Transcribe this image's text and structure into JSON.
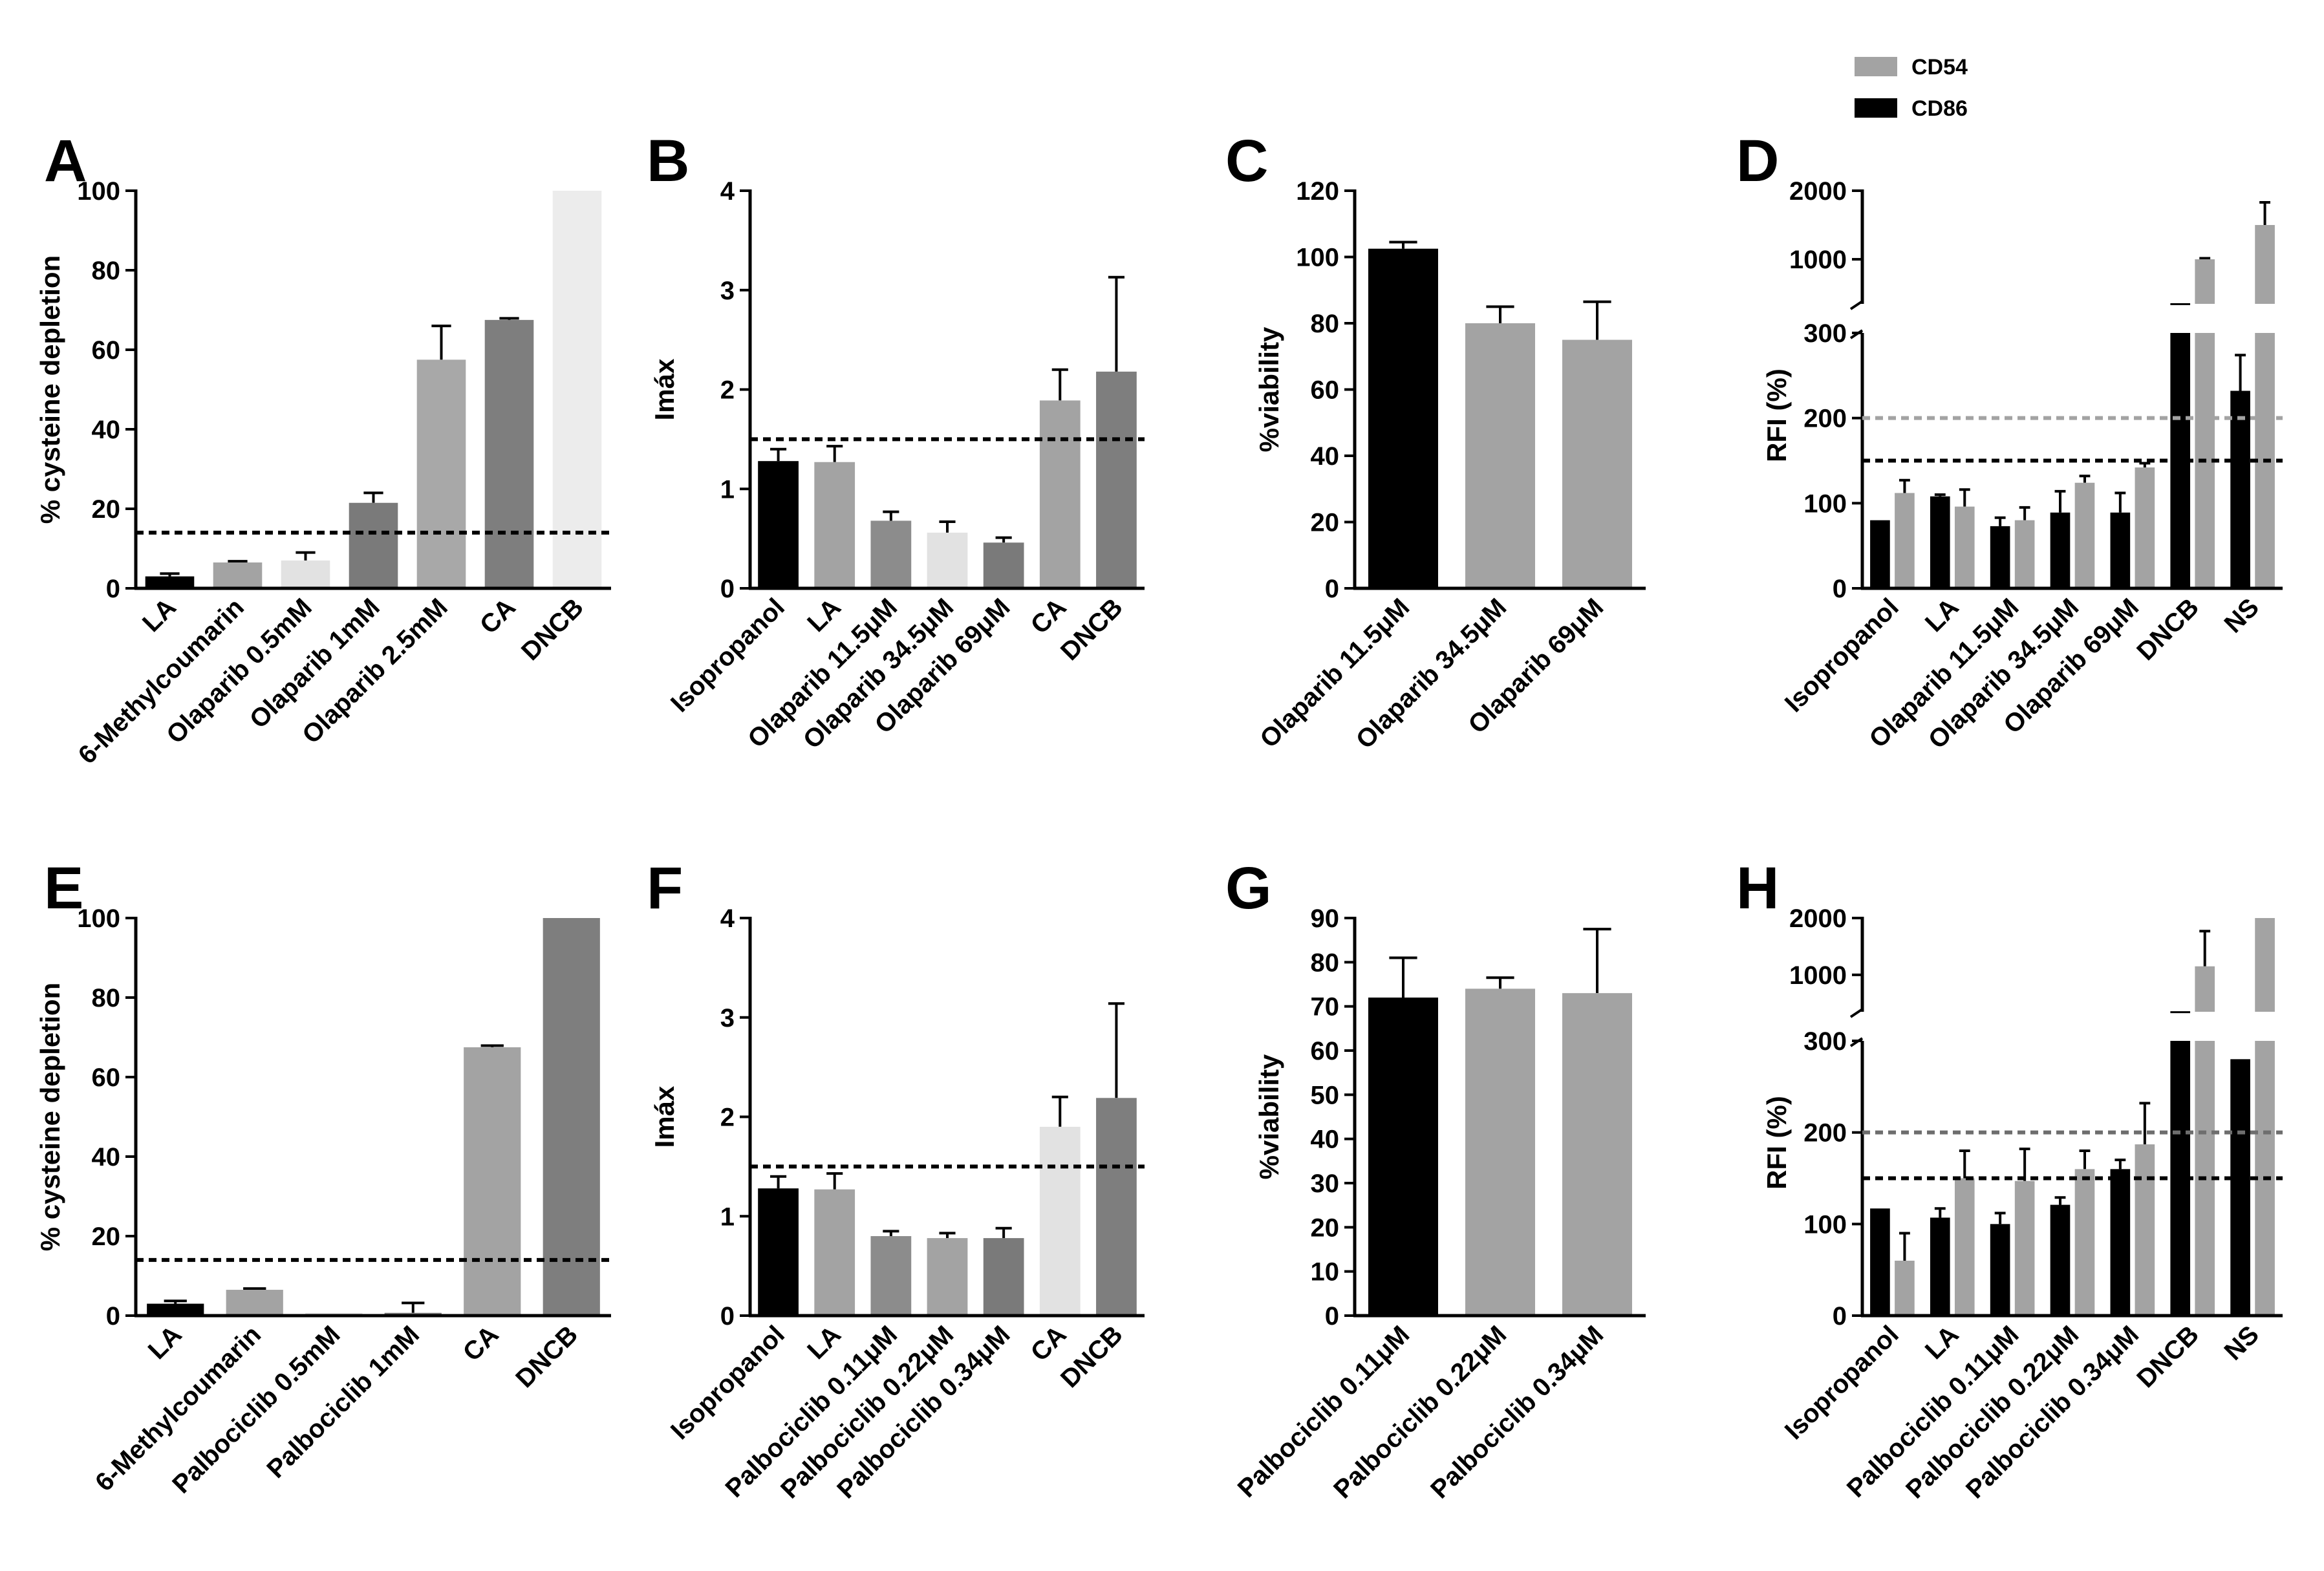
{
  "legend": {
    "items": [
      {
        "label": "CD54",
        "color": "#a3a3a3"
      },
      {
        "label": "CD86",
        "color": "#000000"
      }
    ]
  },
  "chart_data": [
    {
      "id": "A",
      "letter": "A",
      "type": "bar",
      "ylabel": "% cysteine depletion",
      "ylim": [
        0,
        100
      ],
      "yticks": [
        0,
        20,
        40,
        60,
        80,
        100
      ],
      "categories": [
        "LA",
        "6-Methylcoumarin",
        "Olaparib 0.5mM",
        "Olaparib 1mM",
        "Olaparib 2.5mM",
        "CA",
        "DNCB"
      ],
      "values": [
        3,
        6.5,
        7,
        21.5,
        57.5,
        67.5,
        100
      ],
      "errors": [
        0.7,
        0.3,
        2,
        2.5,
        8.5,
        0.4,
        0
      ],
      "colors": [
        "#000000",
        "#a3a3a3",
        "#e2e2e2",
        "#7a7a7a",
        "#a8a8a8",
        "#7e7e7e",
        "#ececec"
      ],
      "threshold": 14
    },
    {
      "id": "B",
      "letter": "B",
      "type": "bar",
      "ylabel": "Imáx",
      "ylim": [
        0,
        4
      ],
      "yticks": [
        0,
        1,
        2,
        3,
        4
      ],
      "categories": [
        "Isopropanol",
        "LA",
        "Olaparib 11.5μM",
        "Olaparib 34.5μM",
        "Olaparib 69μM",
        "CA",
        "DNCB"
      ],
      "values": [
        1.28,
        1.27,
        0.68,
        0.56,
        0.46,
        1.89,
        2.18
      ],
      "errors": [
        0.12,
        0.16,
        0.09,
        0.11,
        0.05,
        0.31,
        0.95
      ],
      "colors": [
        "#000000",
        "#a3a3a3",
        "#8c8c8c",
        "#e2e2e2",
        "#7a7a7a",
        "#a3a3a3",
        "#7e7e7e"
      ],
      "threshold": 1.5
    },
    {
      "id": "C",
      "letter": "C",
      "type": "bar",
      "ylabel": "%viability",
      "ylim": [
        0,
        120
      ],
      "yticks": [
        0,
        20,
        40,
        60,
        80,
        100,
        120
      ],
      "categories": [
        "Olaparib 11.5μM",
        "Olaparib 34.5μM",
        "Olaparib 69μM"
      ],
      "values": [
        102.5,
        80,
        75
      ],
      "errors": [
        2,
        5,
        11.5
      ],
      "colors": [
        "#000000",
        "#a3a3a3",
        "#a3a3a3"
      ]
    },
    {
      "id": "D",
      "letter": "D",
      "type": "bar",
      "ylabel": "RFI (%)",
      "ylim": [
        0,
        2000
      ],
      "lower_ticks": [
        0,
        100,
        200,
        300
      ],
      "upper_ticks": [
        1000,
        2000
      ],
      "categories": [
        "Isopropanol",
        "LA",
        "Olaparib 11.5μM",
        "Olaparib 34.5μM",
        "Olaparib 69μM",
        "DNCB",
        "NS"
      ],
      "series": [
        {
          "name": "CD86",
          "color": "#000000",
          "values": [
            80,
            108,
            73,
            89,
            89,
            360,
            232
          ],
          "errors": [
            0,
            2,
            10,
            25,
            23,
            0,
            42
          ]
        },
        {
          "name": "CD54",
          "color": "#a3a3a3",
          "values": [
            112,
            96,
            80,
            124,
            142,
            1000,
            1500
          ],
          "errors": [
            15,
            20,
            15,
            8,
            5,
            15,
            330
          ]
        }
      ],
      "thresholds": [
        {
          "value": 200,
          "color": "#a3a3a3"
        },
        {
          "value": 150,
          "color": "#000000"
        }
      ]
    },
    {
      "id": "E",
      "letter": "E",
      "type": "bar",
      "ylabel": "% cysteine depletion",
      "ylim": [
        0,
        100
      ],
      "yticks": [
        0,
        20,
        40,
        60,
        80,
        100
      ],
      "categories": [
        "LA",
        "6-Methylcoumarin",
        "Palbociclib 0.5mM",
        "Palbociclib 1mM",
        "CA",
        "DNCB"
      ],
      "values": [
        3,
        6.5,
        0.7,
        0.7,
        67.5,
        100
      ],
      "errors": [
        0.7,
        0.3,
        0,
        2.5,
        0.4,
        0
      ],
      "colors": [
        "#000000",
        "#a3a3a3",
        "#e2e2e2",
        "#7a7a7a",
        "#a3a3a3",
        "#7e7e7e"
      ],
      "threshold": 14
    },
    {
      "id": "F",
      "letter": "F",
      "type": "bar",
      "ylabel": "Imáx",
      "ylim": [
        0,
        4
      ],
      "yticks": [
        0,
        1,
        2,
        3,
        4
      ],
      "categories": [
        "Isopropanol",
        "LA",
        "Palbociclib 0.11μM",
        "Palbociclib 0.22μM",
        "Palbociclib 0.34μM",
        "CA",
        "DNCB"
      ],
      "values": [
        1.28,
        1.27,
        0.8,
        0.78,
        0.78,
        1.9,
        2.19
      ],
      "errors": [
        0.12,
        0.16,
        0.05,
        0.05,
        0.1,
        0.3,
        0.95
      ],
      "colors": [
        "#000000",
        "#a3a3a3",
        "#8c8c8c",
        "#a3a3a3",
        "#7a7a7a",
        "#e2e2e2",
        "#7e7e7e"
      ],
      "threshold": 1.5
    },
    {
      "id": "G",
      "letter": "G",
      "type": "bar",
      "ylabel": "%viability",
      "ylim": [
        0,
        90
      ],
      "yticks": [
        0,
        10,
        20,
        30,
        40,
        50,
        60,
        70,
        80,
        90
      ],
      "categories": [
        "Palbociclib 0.11μM",
        "Palbociclib 0.22μM",
        "Palbociclib 0.34μM"
      ],
      "values": [
        72,
        74,
        73
      ],
      "errors": [
        9,
        2.5,
        14.5
      ],
      "colors": [
        "#000000",
        "#a3a3a3",
        "#a3a3a3"
      ]
    },
    {
      "id": "H",
      "letter": "H",
      "type": "bar",
      "ylabel": "RFI (%)",
      "ylim": [
        0,
        2000
      ],
      "lower_ticks": [
        0,
        100,
        200,
        300
      ],
      "upper_ticks": [
        1000,
        2000
      ],
      "categories": [
        "Isopropanol",
        "LA",
        "Palbociclib 0.11μM",
        "Palbociclib 0.22μM",
        "Palbociclib 0.34μM",
        "DNCB",
        "NS"
      ],
      "series": [
        {
          "name": "CD86",
          "color": "#000000",
          "values": [
            117,
            107,
            100,
            121,
            160,
            360,
            280
          ],
          "errors": [
            0,
            10,
            12,
            8,
            10,
            0,
            0
          ]
        },
        {
          "name": "CD54",
          "color": "#a3a3a3",
          "values": [
            60,
            150,
            147,
            160,
            187,
            1150,
            2000
          ],
          "errors": [
            30,
            30,
            35,
            20,
            45,
            620,
            0
          ]
        }
      ],
      "thresholds": [
        {
          "value": 200,
          "color": "#6e6e6e"
        },
        {
          "value": 150,
          "color": "#000000"
        }
      ]
    }
  ]
}
